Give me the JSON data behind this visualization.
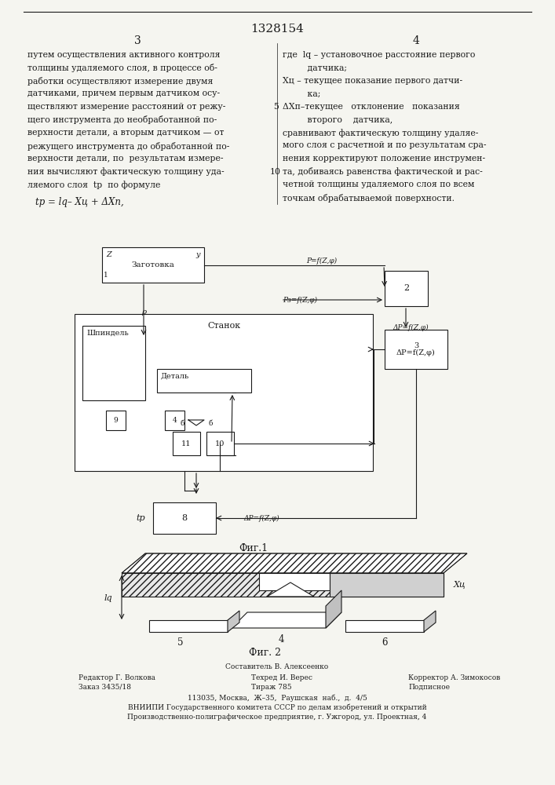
{
  "patent_number": "1328154",
  "page_left": "3",
  "page_right": "4",
  "bg_color": "#f5f5f0",
  "text_color": "#1a1a1a",
  "left_column_text": [
    "путем осуществления активного контроля",
    "толщины удаляемого слоя, в процессе об-",
    "работки осуществляют измерение двумя",
    "датчиками, причем первым датчиком осу-",
    "ществляют измерение расстояний от режу-",
    "щего инструмента до необработанной по-",
    "верхности детали, а вторым датчиком — от",
    "режущего инструмента до обработанной по-",
    "верхности детали, по  результатам измере-",
    "ния вычисляют фактическую толщину уда-",
    "ляемого слоя  tр  по формуле"
  ],
  "formula": "tp = lq - Xц + ΔXп,",
  "right_column_text_top": [
    "где  lq – установочное расстояние первого",
    "         датчика;",
    "Xц – текущее показание первого датчи-",
    "         ка;",
    "ΔXп–текущее   отклонение   показания",
    "         второго    датчика,",
    "сравнивают фактическую толщину удаляе-",
    "мого слоя с расчетной и по результатам сра-",
    "нения корректируют положение инструмен-",
    "та, добиваясь равенства фактической и рас-",
    "четной толщины удаляемого слоя по всем",
    "точкам обрабатываемой поверхности."
  ],
  "line_numbers": [
    "5",
    "10"
  ],
  "fig1_caption": "Фиг.1",
  "fig2_caption": "Фиг. 2",
  "footer_lines": [
    "Составитель В. Алексеенко",
    "Редактор Г. Волкова        Техред И. Верес           Корректор А. Зимокосов",
    "Заказ 3435/18              Тираж 785                  Подписное",
    "ВНИИПИ Государственного комитета СССР по делам изобретений и открытий",
    "113035, Москва,  Ж–35,  Раушская  наб.,  д.  4/5",
    "Производственно-полиграфическое предприятие, г. Ужгород, ул. Проектная, 4"
  ]
}
